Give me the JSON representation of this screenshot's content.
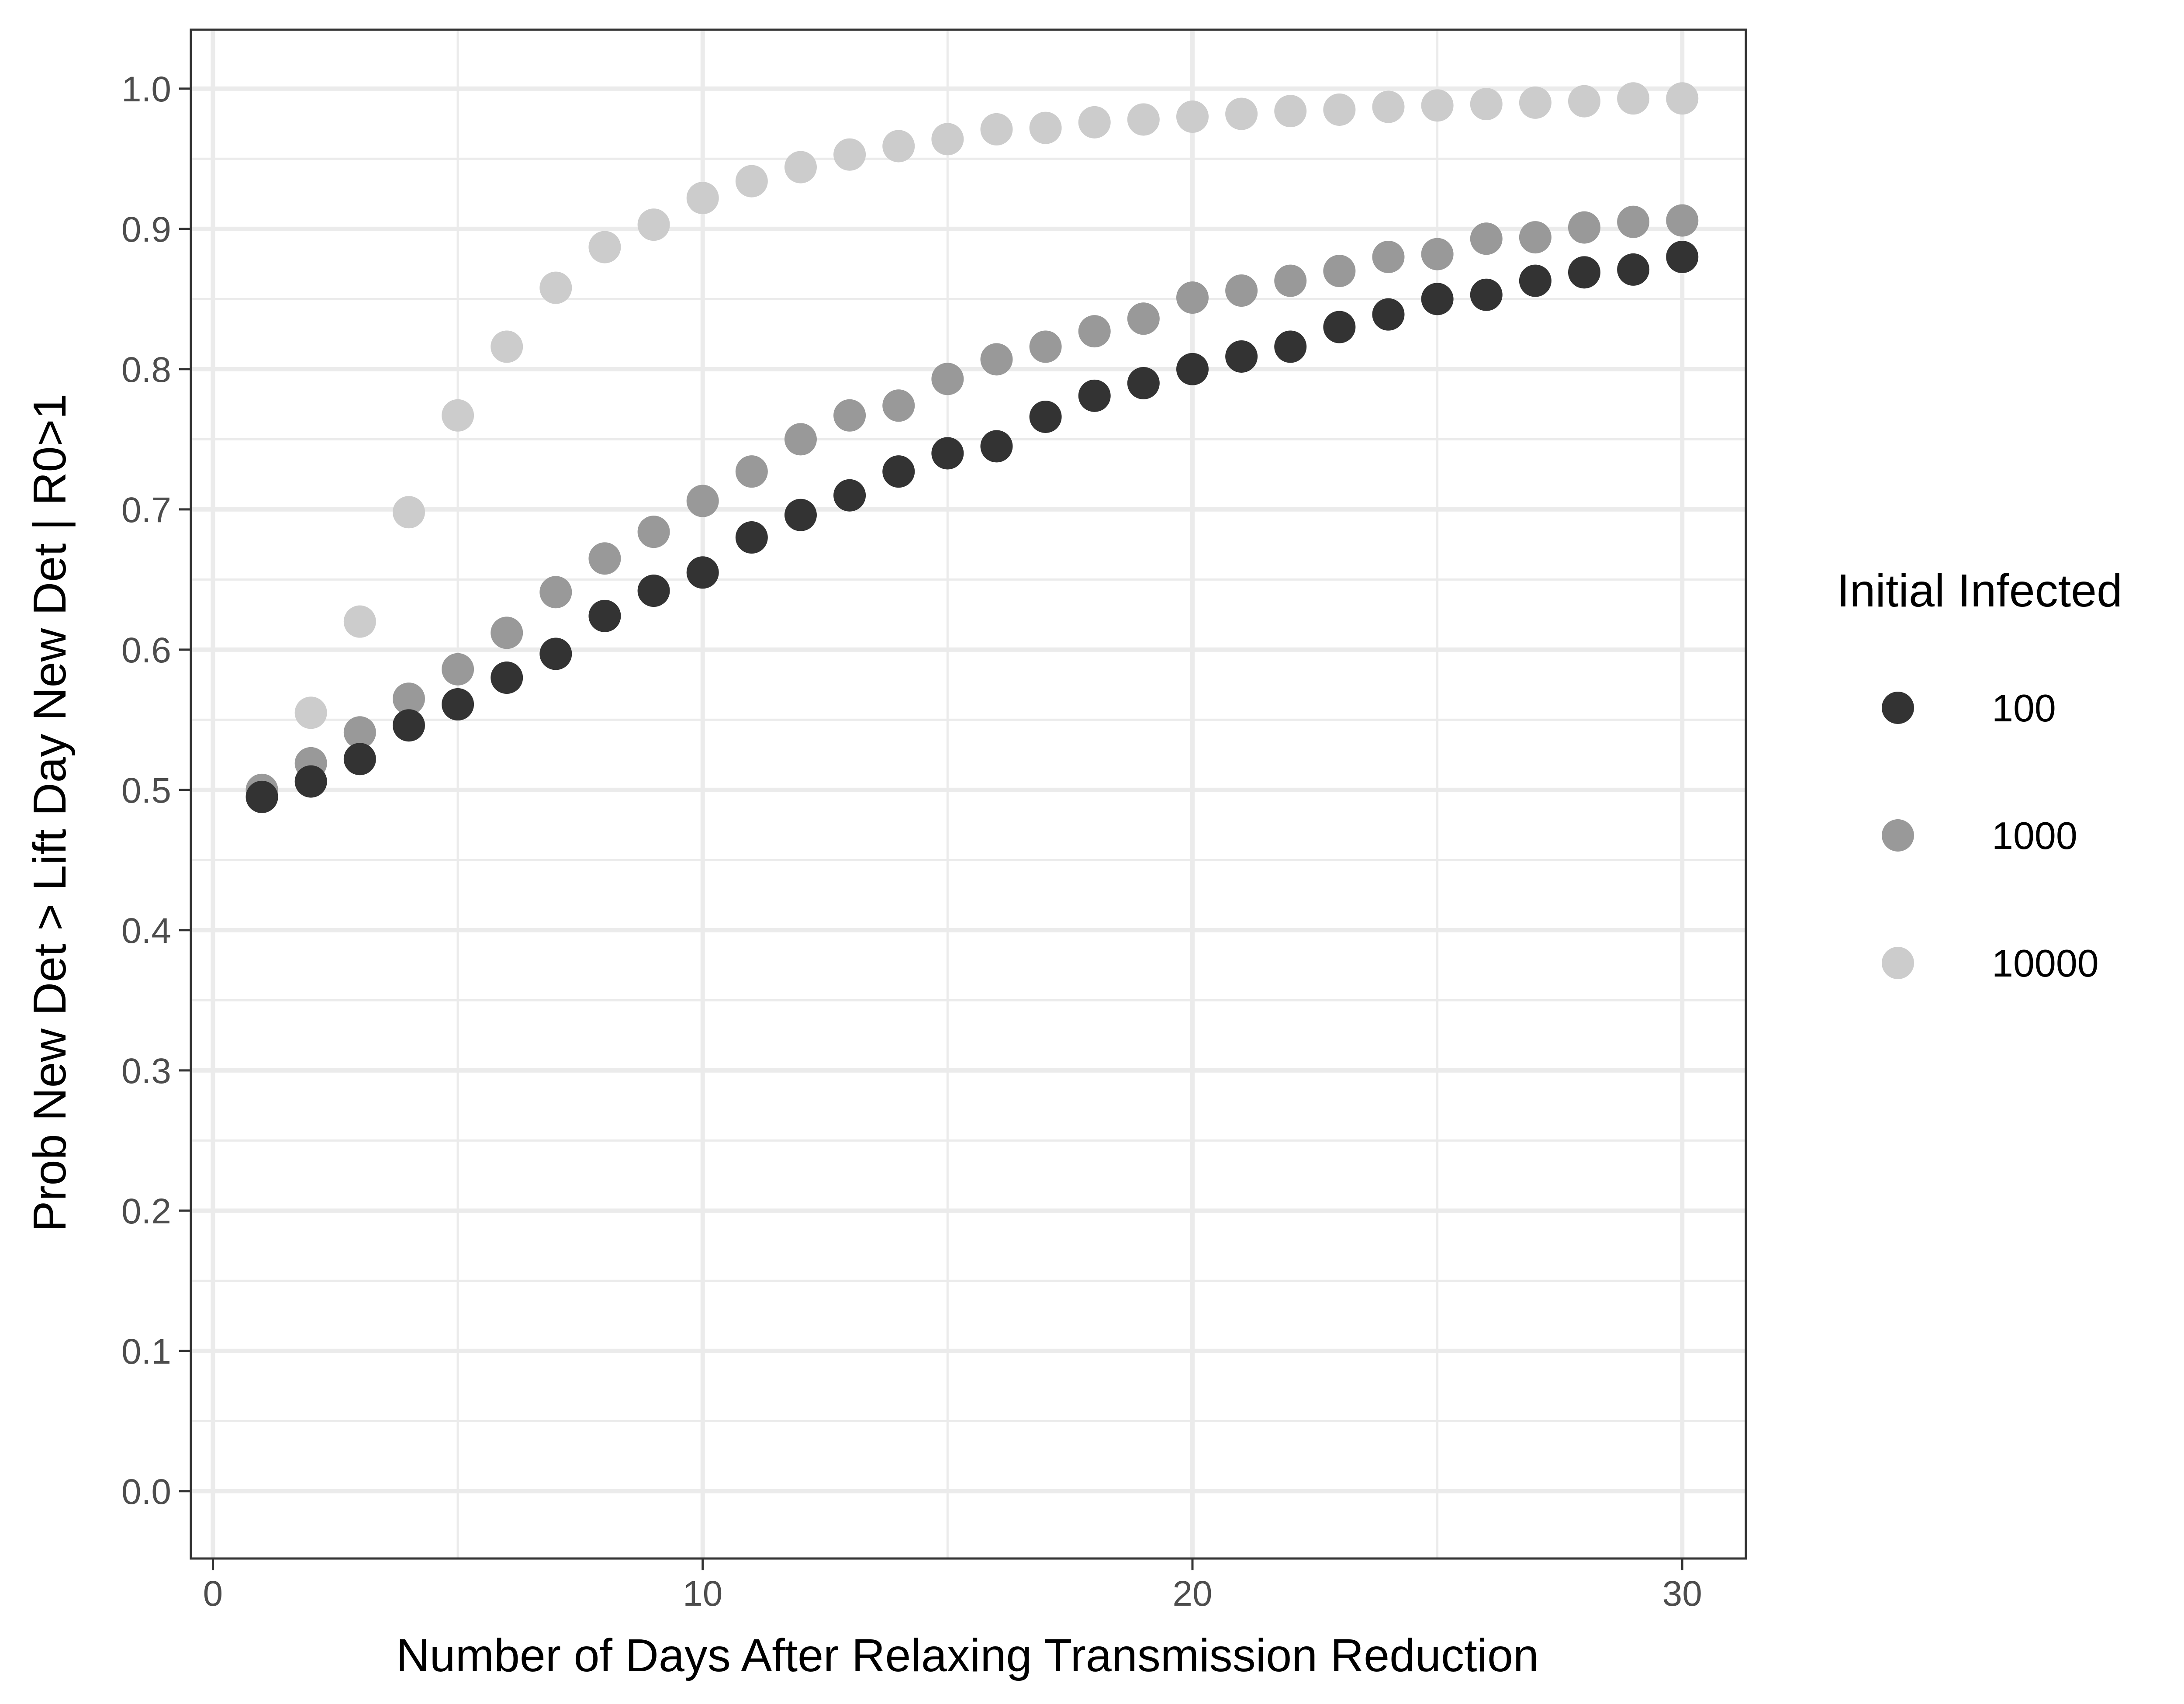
{
  "chart_data": {
    "type": "scatter",
    "title": "",
    "xlabel": "Number of Days After Relaxing Transmission Reduction",
    "ylabel": "Prob New Det > Lift Day New Det | R0>1",
    "xlim": [
      -0.45,
      31.3
    ],
    "ylim": [
      -0.048,
      1.042
    ],
    "x_ticks": [
      0,
      10,
      20,
      30
    ],
    "x_tick_labels": [
      "0",
      "10",
      "20",
      "30"
    ],
    "y_ticks": [
      0.0,
      0.1,
      0.2,
      0.3,
      0.4,
      0.5,
      0.6,
      0.7,
      0.8,
      0.9,
      1.0
    ],
    "y_tick_labels": [
      "0.0",
      "0.1",
      "0.2",
      "0.3",
      "0.4",
      "0.5",
      "0.6",
      "0.7",
      "0.8",
      "0.9",
      "1.0"
    ],
    "x_minor_ticks": [
      5,
      15,
      25
    ],
    "y_minor_ticks": [
      0.05,
      0.15,
      0.25,
      0.35,
      0.45,
      0.55,
      0.65,
      0.75,
      0.85,
      0.95
    ],
    "grid": true,
    "legend": {
      "title": "Initial Infected",
      "position": "right"
    },
    "x": [
      1,
      2,
      3,
      4,
      5,
      6,
      7,
      8,
      9,
      10,
      11,
      12,
      13,
      14,
      15,
      16,
      17,
      18,
      19,
      20,
      21,
      22,
      23,
      24,
      25,
      26,
      27,
      28,
      29,
      30
    ],
    "series": [
      {
        "name": "100",
        "color": "#333333",
        "values": [
          0.495,
          0.506,
          0.522,
          0.546,
          0.561,
          0.58,
          0.597,
          0.624,
          0.642,
          0.655,
          0.68,
          0.696,
          0.71,
          0.727,
          0.74,
          0.745,
          0.766,
          0.781,
          0.79,
          0.8,
          0.809,
          0.816,
          0.83,
          0.839,
          0.85,
          0.853,
          0.863,
          0.869,
          0.871,
          0.88
        ]
      },
      {
        "name": "1000",
        "color": "#999999",
        "values": [
          0.5,
          0.519,
          0.541,
          0.565,
          0.586,
          0.612,
          0.641,
          0.665,
          0.684,
          0.706,
          0.727,
          0.75,
          0.767,
          0.774,
          0.793,
          0.807,
          0.816,
          0.827,
          0.836,
          0.851,
          0.856,
          0.863,
          0.87,
          0.88,
          0.882,
          0.893,
          0.894,
          0.901,
          0.905,
          0.906
        ]
      },
      {
        "name": "10000",
        "color": "#cccccc",
        "values": [
          0.5,
          0.555,
          0.62,
          0.698,
          0.767,
          0.816,
          0.858,
          0.887,
          0.903,
          0.922,
          0.934,
          0.944,
          0.953,
          0.959,
          0.964,
          0.971,
          0.972,
          0.976,
          0.978,
          0.98,
          0.982,
          0.984,
          0.985,
          0.987,
          0.988,
          0.989,
          0.99,
          0.991,
          0.993,
          0.993
        ]
      }
    ]
  }
}
